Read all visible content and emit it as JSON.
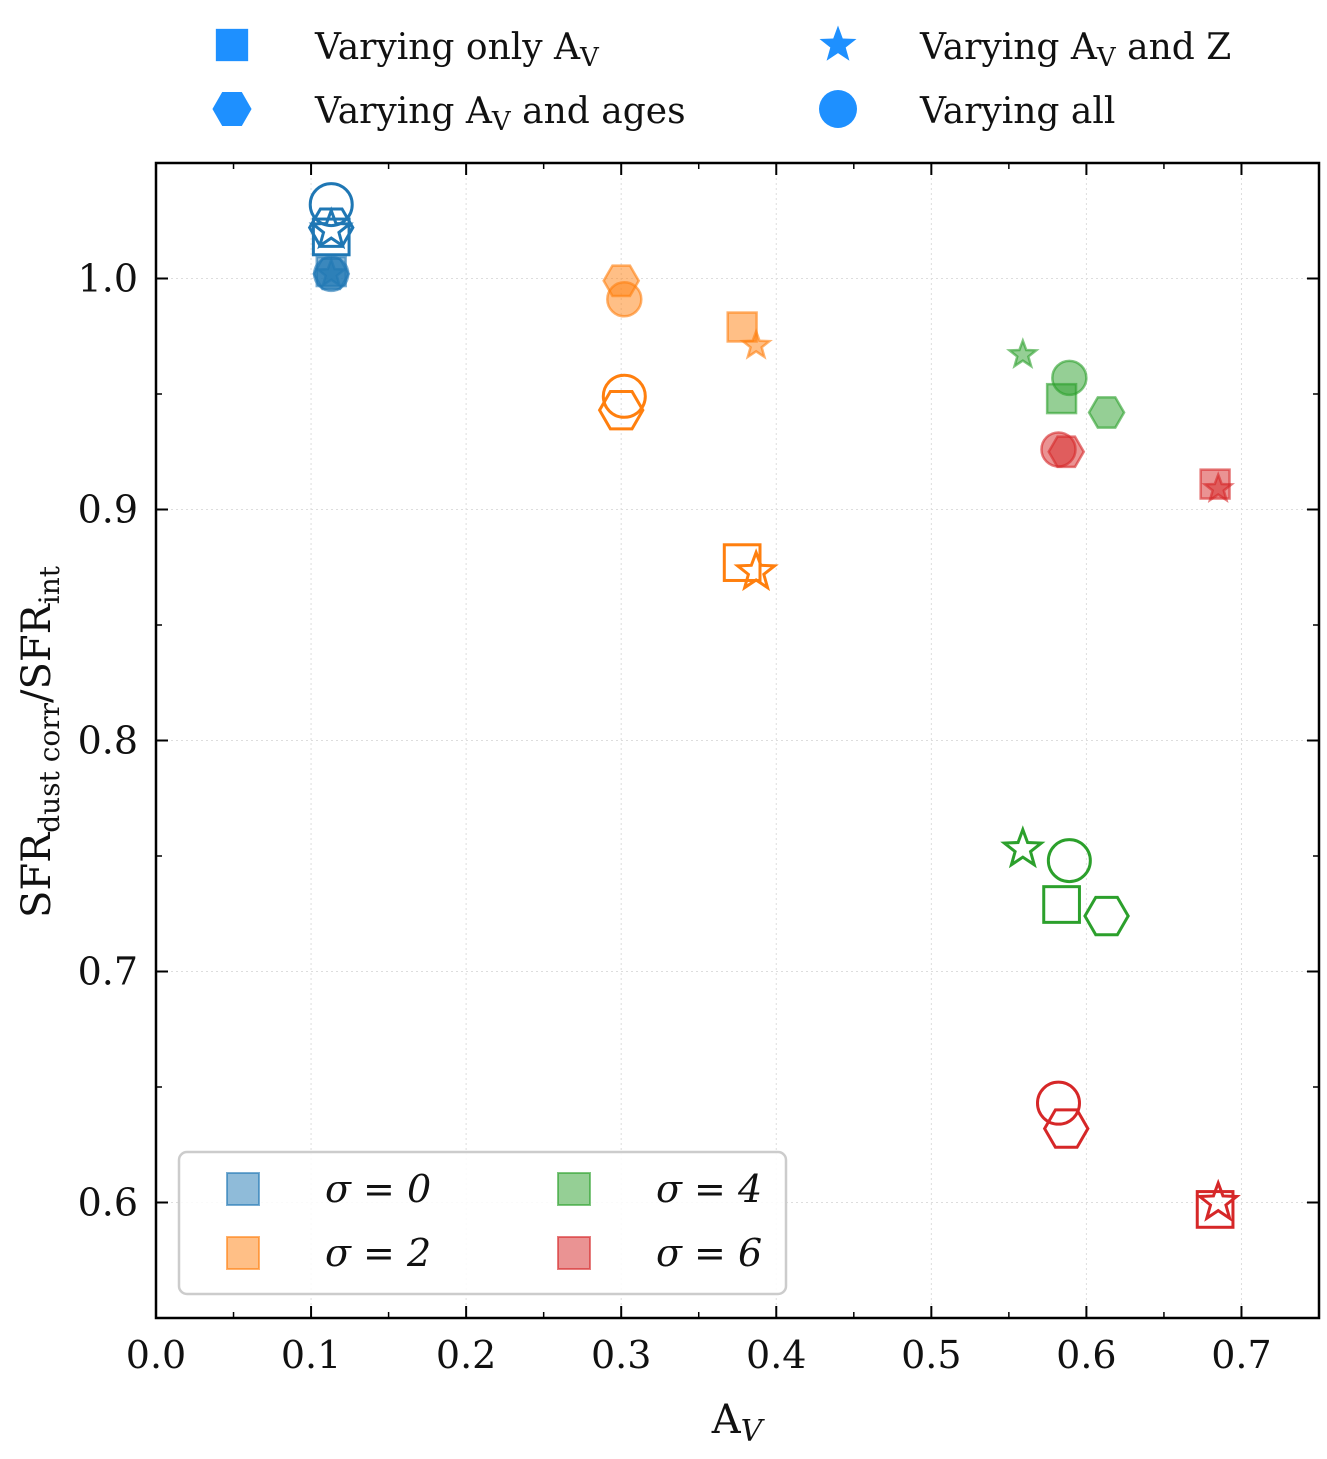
{
  "chart_data": {
    "type": "scatter",
    "title": "",
    "xlabel": "A",
    "xlabel_sub": "V",
    "ylabel_main": "SFR",
    "ylabel_sub1": "dust corr",
    "ylabel_mid": "/SFR",
    "ylabel_sub2": "int",
    "xlim": [
      0.0,
      0.75
    ],
    "ylim": [
      0.55,
      1.05
    ],
    "xticks": [
      0.0,
      0.1,
      0.2,
      0.3,
      0.4,
      0.5,
      0.6,
      0.7
    ],
    "xtick_labels": [
      "0.0",
      "0.1",
      "0.2",
      "0.3",
      "0.4",
      "0.5",
      "0.6",
      "0.7"
    ],
    "yticks": [
      0.6,
      0.7,
      0.8,
      0.9,
      1.0
    ],
    "ytick_labels": [
      "0.6",
      "0.7",
      "0.8",
      "0.9",
      "1.0"
    ],
    "grid": true,
    "colors": {
      "sigma0": "#1f77b4",
      "sigma2": "#ff7f0e",
      "sigma4": "#2ca02c",
      "sigma6": "#d62728",
      "legend_marker": "#1e90ff"
    },
    "marker_legend": {
      "position": "top-center",
      "items": [
        {
          "marker": "square",
          "text": "Varying only A",
          "sub": "V",
          "tail": ""
        },
        {
          "marker": "star",
          "text": "Varying A",
          "sub": "V",
          "tail": " and Z"
        },
        {
          "marker": "hexagon",
          "text": "Varying A",
          "sub": "V",
          "tail": " and ages"
        },
        {
          "marker": "circle",
          "text": "Varying all",
          "sub": "",
          "tail": ""
        }
      ]
    },
    "sigma_legend": {
      "position": "lower-left",
      "items": [
        {
          "label": "σ = 0",
          "color_key": "sigma0"
        },
        {
          "label": "σ = 4",
          "color_key": "sigma4"
        },
        {
          "label": "σ = 2",
          "color_key": "sigma2"
        },
        {
          "label": "σ = 6",
          "color_key": "sigma6"
        }
      ]
    },
    "series": [
      {
        "name": "σ = 0",
        "color_key": "sigma0",
        "points": [
          {
            "marker": "square",
            "style": "filled",
            "x": 0.113,
            "y": 1.003
          },
          {
            "marker": "star",
            "style": "filled",
            "x": 0.113,
            "y": 1.002
          },
          {
            "marker": "hexagon",
            "style": "filled",
            "x": 0.113,
            "y": 1.002
          },
          {
            "marker": "circle",
            "style": "filled",
            "x": 0.113,
            "y": 1.002
          },
          {
            "marker": "square",
            "style": "open",
            "x": 0.113,
            "y": 1.018
          },
          {
            "marker": "star",
            "style": "open",
            "x": 0.113,
            "y": 1.021
          },
          {
            "marker": "hexagon",
            "style": "open",
            "x": 0.113,
            "y": 1.022
          },
          {
            "marker": "circle",
            "style": "open",
            "x": 0.113,
            "y": 1.032
          }
        ]
      },
      {
        "name": "σ = 2",
        "color_key": "sigma2",
        "points": [
          {
            "marker": "square",
            "style": "filled",
            "x": 0.378,
            "y": 0.979
          },
          {
            "marker": "star",
            "style": "filled",
            "x": 0.387,
            "y": 0.971
          },
          {
            "marker": "hexagon",
            "style": "filled",
            "x": 0.3,
            "y": 0.999
          },
          {
            "marker": "circle",
            "style": "filled",
            "x": 0.302,
            "y": 0.991
          },
          {
            "marker": "square",
            "style": "open",
            "x": 0.378,
            "y": 0.877
          },
          {
            "marker": "star",
            "style": "open",
            "x": 0.387,
            "y": 0.873
          },
          {
            "marker": "hexagon",
            "style": "open",
            "x": 0.3,
            "y": 0.943
          },
          {
            "marker": "circle",
            "style": "open",
            "x": 0.302,
            "y": 0.949
          }
        ]
      },
      {
        "name": "σ = 4",
        "color_key": "sigma4",
        "points": [
          {
            "marker": "square",
            "style": "filled",
            "x": 0.584,
            "y": 0.948
          },
          {
            "marker": "star",
            "style": "filled",
            "x": 0.559,
            "y": 0.967
          },
          {
            "marker": "hexagon",
            "style": "filled",
            "x": 0.613,
            "y": 0.942
          },
          {
            "marker": "circle",
            "style": "filled",
            "x": 0.589,
            "y": 0.957
          },
          {
            "marker": "square",
            "style": "open",
            "x": 0.584,
            "y": 0.729
          },
          {
            "marker": "star",
            "style": "open",
            "x": 0.559,
            "y": 0.753
          },
          {
            "marker": "hexagon",
            "style": "open",
            "x": 0.613,
            "y": 0.724
          },
          {
            "marker": "circle",
            "style": "open",
            "x": 0.589,
            "y": 0.748
          }
        ]
      },
      {
        "name": "σ = 6",
        "color_key": "sigma6",
        "points": [
          {
            "marker": "square",
            "style": "filled",
            "x": 0.683,
            "y": 0.911
          },
          {
            "marker": "star",
            "style": "filled",
            "x": 0.685,
            "y": 0.909
          },
          {
            "marker": "hexagon",
            "style": "filled",
            "x": 0.587,
            "y": 0.925
          },
          {
            "marker": "circle",
            "style": "filled",
            "x": 0.582,
            "y": 0.926
          },
          {
            "marker": "square",
            "style": "open",
            "x": 0.683,
            "y": 0.597
          },
          {
            "marker": "star",
            "style": "open",
            "x": 0.685,
            "y": 0.6
          },
          {
            "marker": "hexagon",
            "style": "open",
            "x": 0.587,
            "y": 0.632
          },
          {
            "marker": "circle",
            "style": "open",
            "x": 0.582,
            "y": 0.643
          }
        ]
      }
    ]
  }
}
